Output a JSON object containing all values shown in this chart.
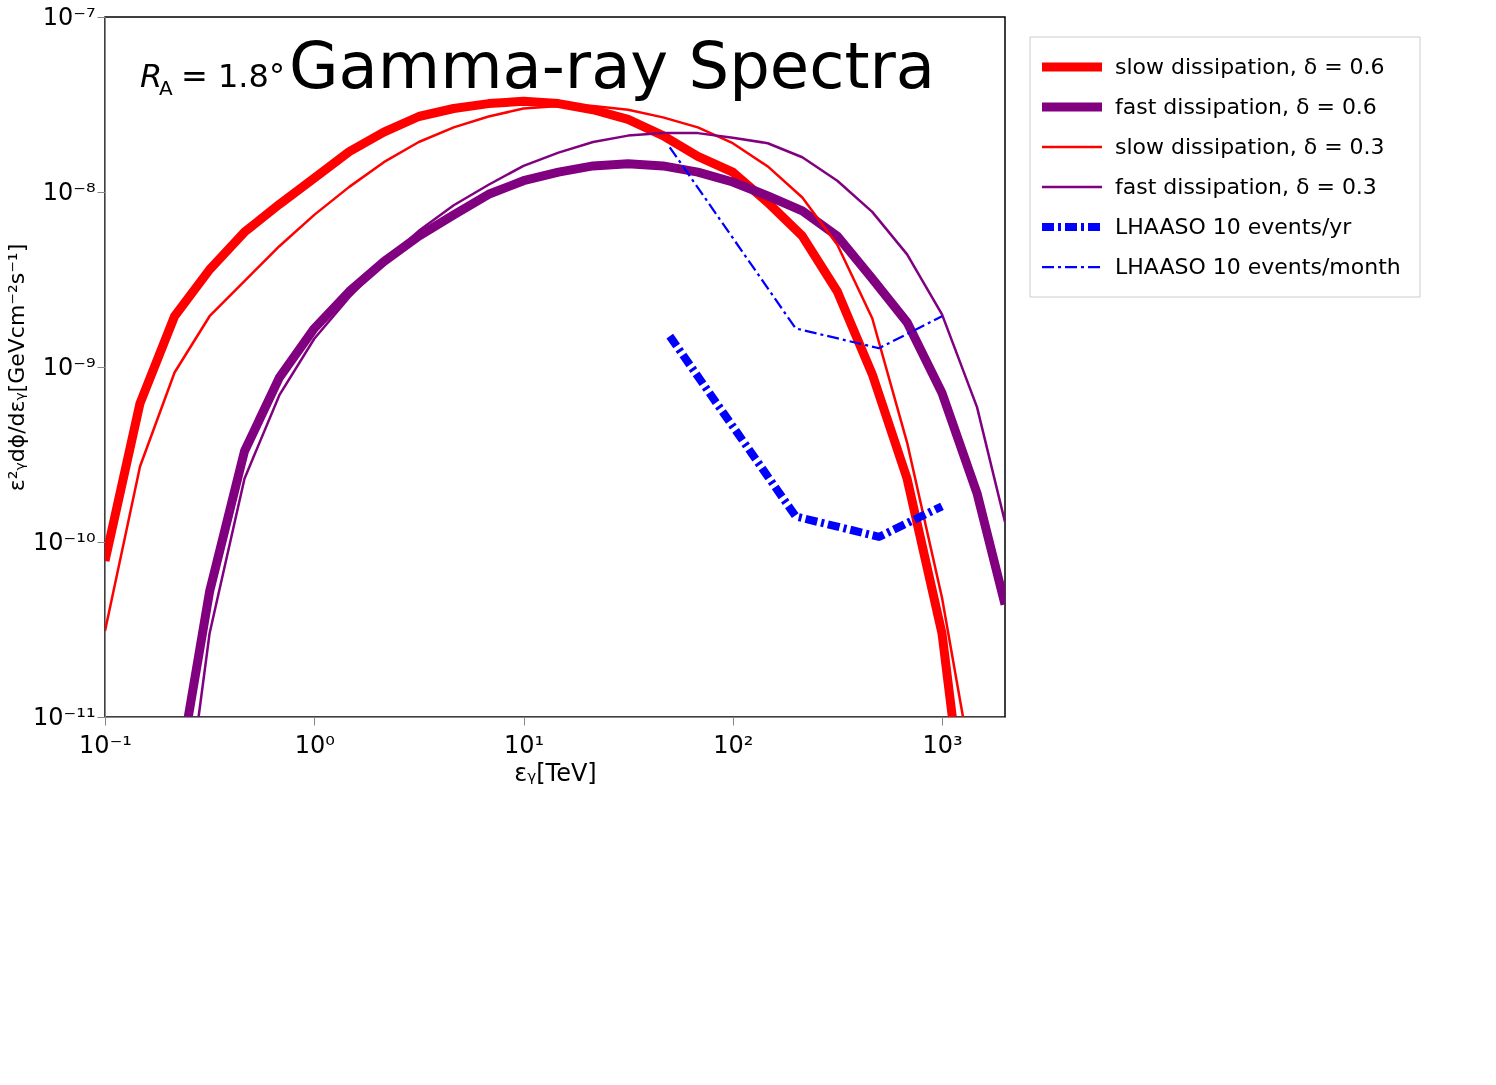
{
  "chart_data": {
    "type": "line",
    "title": "Gamma-ray Spectra",
    "xlabel": "εᵧ[TeV]",
    "ylabel": "ε²ᵧdϕ/dεᵧ[GeVcm⁻²s⁻¹]",
    "annotations": [
      "R$_{A}$ = 1.8°"
    ],
    "log": "xy",
    "grid": false,
    "legend": "right",
    "line_style": "solid",
    "xlim": [
      0.1,
      2000
    ],
    "ylim": [
      1e-11,
      1e-07
    ],
    "xticks": [
      {
        "value": 0.1,
        "label": "10⁻¹"
      },
      {
        "value": 1,
        "label": "10⁰"
      },
      {
        "value": 10,
        "label": "10¹"
      },
      {
        "value": 100,
        "label": "10²"
      },
      {
        "value": 1000,
        "label": "10³"
      }
    ],
    "yticks": [
      {
        "value": 1e-11,
        "label": "10⁻¹¹"
      },
      {
        "value": 1e-10,
        "label": "10⁻¹⁰"
      },
      {
        "value": 1e-09,
        "label": "10⁻⁹"
      },
      {
        "value": 1e-08,
        "label": "10⁻⁸"
      },
      {
        "value": 1e-07,
        "label": "10⁻⁷"
      }
    ],
    "series": [
      {
        "name": "slow dissipation, δ = 0.6",
        "color": "#ff0000",
        "x": [
          0.1,
          0.147,
          0.215,
          0.316,
          0.464,
          0.681,
          1,
          1.47,
          2.15,
          3.16,
          4.64,
          6.81,
          10,
          14.7,
          21.5,
          31.6,
          46.4,
          68.1,
          100,
          147,
          215,
          316,
          464,
          681,
          1000,
          1120
        ],
        "values": [
          7.8e-11,
          6.2e-10,
          1.95e-09,
          3.6e-09,
          5.9e-09,
          8.5e-09,
          1.2e-08,
          1.7e-08,
          2.2e-08,
          2.7e-08,
          3e-08,
          3.2e-08,
          3.3e-08,
          3.2e-08,
          2.95e-08,
          2.6e-08,
          2.1e-08,
          1.6e-08,
          1.3e-08,
          8.7e-09,
          5.6e-09,
          2.7e-09,
          9.1e-10,
          2.3e-10,
          3e-11,
          1e-11
        ]
      },
      {
        "name": "fast dissipation, δ = 0.6",
        "color": "#800080",
        "x": [
          0.25,
          0.316,
          0.464,
          0.681,
          1,
          1.47,
          2.15,
          3.16,
          4.64,
          6.81,
          10,
          14.7,
          21.5,
          31.6,
          46.4,
          68.1,
          100,
          147,
          215,
          316,
          464,
          681,
          1000,
          1470,
          2000
        ],
        "values": [
          1e-11,
          5.2e-11,
          3.3e-10,
          8.7e-10,
          1.66e-09,
          2.7e-09,
          4e-09,
          5.6e-09,
          7.4e-09,
          9.7e-09,
          1.16e-08,
          1.3e-08,
          1.41e-08,
          1.45e-08,
          1.41e-08,
          1.3e-08,
          1.14e-08,
          9.5e-09,
          7.8e-09,
          5.6e-09,
          3.2e-09,
          1.8e-09,
          7.1e-10,
          1.9e-10,
          4.4e-11
        ]
      },
      {
        "name": "slow dissipation, δ = 0.3",
        "color": "#ff0000",
        "x": [
          0.1,
          0.147,
          0.215,
          0.316,
          0.464,
          0.681,
          1,
          1.47,
          2.15,
          3.16,
          4.64,
          6.81,
          10,
          14.7,
          21.5,
          31.6,
          46.4,
          68.1,
          100,
          147,
          215,
          316,
          464,
          681,
          1000,
          1260
        ],
        "values": [
          3.1e-11,
          2.7e-10,
          9.3e-10,
          1.95e-09,
          3.1e-09,
          4.9e-09,
          7.4e-09,
          1.07e-08,
          1.48e-08,
          1.93e-08,
          2.34e-08,
          2.7e-08,
          3e-08,
          3.1e-08,
          3.1e-08,
          2.95e-08,
          2.67e-08,
          2.34e-08,
          1.9e-08,
          1.4e-08,
          9.3e-09,
          5e-09,
          1.9e-09,
          3.7e-10,
          4.8e-11,
          1e-11
        ]
      },
      {
        "name": "fast dissipation, δ = 0.3",
        "color": "#800080",
        "x": [
          0.28,
          0.316,
          0.464,
          0.681,
          1,
          1.47,
          2.15,
          3.16,
          4.64,
          6.81,
          10,
          14.7,
          21.5,
          31.6,
          46.4,
          68.1,
          100,
          147,
          215,
          316,
          464,
          681,
          1000,
          1470,
          2000
        ],
        "values": [
          1e-11,
          3e-11,
          2.3e-10,
          6.9e-10,
          1.45e-09,
          2.5e-09,
          4e-09,
          6e-09,
          8.4e-09,
          1.1e-08,
          1.41e-08,
          1.68e-08,
          1.93e-08,
          2.1e-08,
          2.17e-08,
          2.17e-08,
          2.04e-08,
          1.9e-08,
          1.58e-08,
          1.16e-08,
          7.7e-09,
          4.4e-09,
          2e-09,
          5.9e-10,
          1.3e-10
        ]
      },
      {
        "name": "LHAASO 10 events/yr",
        "color": "#0000ff",
        "line_style": "dashdot",
        "x": [
          50,
          200,
          500,
          1000
        ],
        "values": [
          1.5e-09,
          1.4e-10,
          1.07e-10,
          1.6e-10
        ]
      },
      {
        "name": "LHAASO 10 events/month",
        "color": "#0000ff",
        "line_style": "dashdot",
        "x": [
          50,
          200,
          500,
          1000
        ],
        "values": [
          1.8e-08,
          1.66e-09,
          1.28e-09,
          1.95e-09
        ]
      }
    ]
  }
}
